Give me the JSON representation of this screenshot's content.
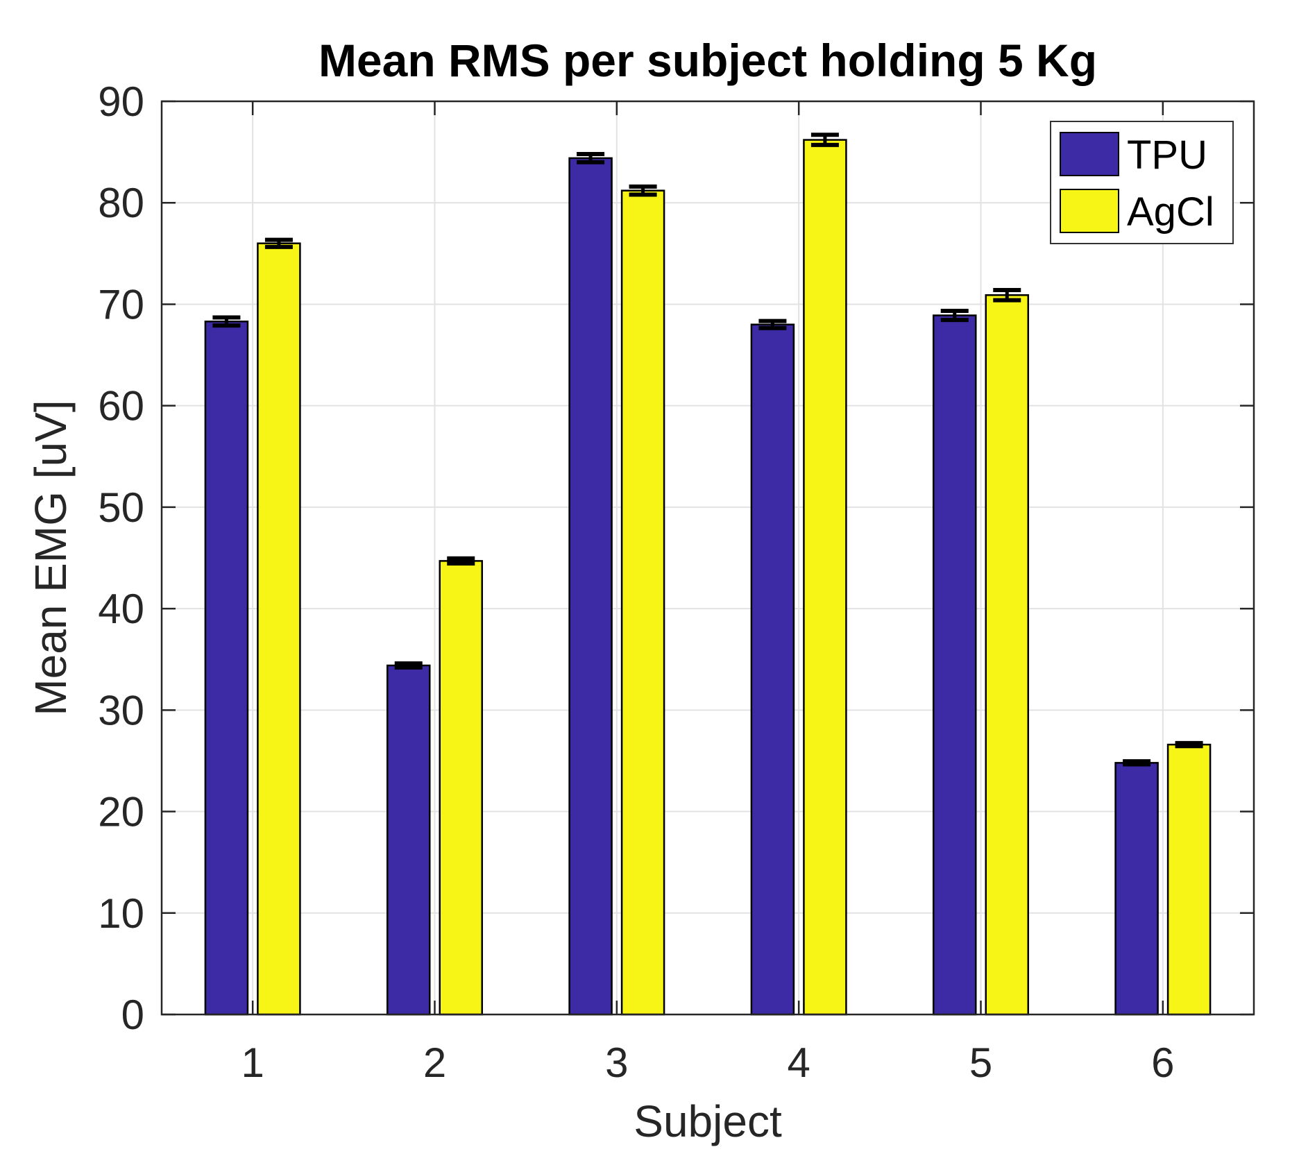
{
  "chart_data": {
    "type": "bar",
    "title": "Mean RMS per subject holding 5 Kg",
    "xlabel": "Subject",
    "ylabel": "Mean EMG [uV]",
    "categories": [
      "1",
      "2",
      "3",
      "4",
      "5",
      "6"
    ],
    "series": [
      {
        "name": "TPU",
        "color": "#3D2BA5",
        "values": [
          68.3,
          34.4,
          84.4,
          68.0,
          68.9,
          24.8
        ],
        "errors": [
          0.4,
          0.2,
          0.4,
          0.35,
          0.45,
          0.15
        ]
      },
      {
        "name": "AgCl",
        "color": "#F7F515",
        "values": [
          76.0,
          44.7,
          81.2,
          86.2,
          70.9,
          26.6
        ],
        "errors": [
          0.35,
          0.25,
          0.4,
          0.5,
          0.5,
          0.15
        ]
      }
    ],
    "ylim": [
      0,
      90
    ],
    "yticks": [
      0,
      10,
      20,
      30,
      40,
      50,
      60,
      70,
      80,
      90
    ],
    "grid": "on",
    "legend_position": "top-right",
    "bar_edge_color": "#000000",
    "error_bar_color": "#000000",
    "axis_color": "#262626",
    "grid_color": "#E2E2E2",
    "background_color": "#FFFFFF"
  }
}
